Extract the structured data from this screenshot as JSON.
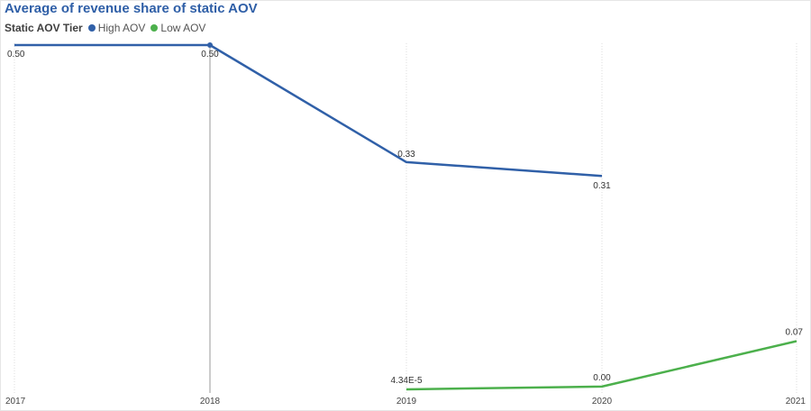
{
  "title": "Average of revenue share of static AOV",
  "legend": {
    "title": "Static AOV Tier",
    "items": [
      {
        "label": "High AOV",
        "color": "#3060a8"
      },
      {
        "label": "Low AOV",
        "color": "#4cb04c"
      }
    ]
  },
  "chart_data": {
    "type": "line",
    "title": "Average of revenue share of static AOV",
    "xlabel": "",
    "ylabel": "",
    "categories": [
      "2017",
      "2018",
      "2019",
      "2020",
      "2021"
    ],
    "ylim": [
      0,
      0.5
    ],
    "grid": "vertical dotted",
    "legend_position": "top-left",
    "series": [
      {
        "name": "High AOV",
        "color": "#3060a8",
        "values": [
          0.5,
          0.5,
          0.33,
          0.31,
          null
        ],
        "labels": [
          "0.50",
          "0.50",
          "0.33",
          "0.31",
          ""
        ]
      },
      {
        "name": "Low AOV",
        "color": "#4cb04c",
        "values": [
          null,
          null,
          4.34e-05,
          0.004,
          0.07
        ],
        "labels": [
          "",
          "",
          "4.34E-5",
          "0.00",
          "0.07"
        ]
      }
    ]
  }
}
